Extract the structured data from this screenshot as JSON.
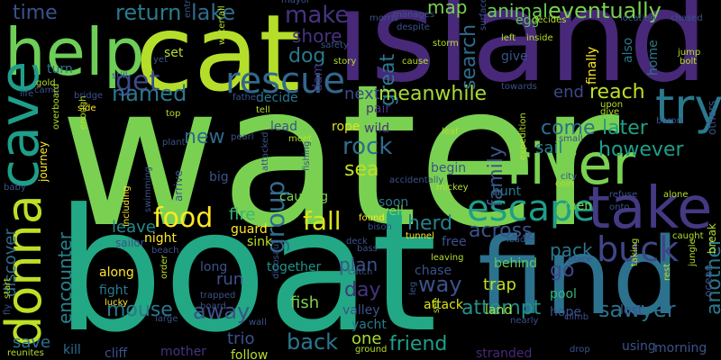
{
  "background": "#000000",
  "words": [
    {
      "text": "water",
      "color": "#7ad151",
      "rotated": false
    },
    {
      "text": "boat",
      "color": "#22a884",
      "rotated": false
    },
    {
      "text": "island",
      "color": "#482878",
      "rotated": false
    },
    {
      "text": "cat",
      "color": "#b5de2b",
      "rotated": false
    },
    {
      "text": "find",
      "color": "#2c728e",
      "rotated": false
    },
    {
      "text": "help",
      "color": "#6ece58",
      "rotated": false
    },
    {
      "text": "take",
      "color": "#443983",
      "rotated": false
    },
    {
      "text": "river",
      "color": "#7ad151",
      "rotated": false
    },
    {
      "text": "cave",
      "color": "#1f9e89",
      "rotated": true
    },
    {
      "text": "donna",
      "color": "#bddf26",
      "rotated": true
    },
    {
      "text": "try",
      "color": "#2a788e",
      "rotated": false
    },
    {
      "text": "rescue",
      "color": "#31688e",
      "rotated": false
    },
    {
      "text": "escape",
      "color": "#1f9e89",
      "rotated": false
    },
    {
      "text": "food",
      "color": "#fde725",
      "rotated": false
    },
    {
      "text": "buck",
      "color": "#404688",
      "rotated": false
    },
    {
      "text": "fall",
      "color": "#dde318",
      "rotated": false
    },
    {
      "text": "group",
      "color": "#2f6c8e",
      "rotated": true
    },
    {
      "text": "get",
      "color": "#3e4989",
      "rotated": false
    },
    {
      "text": "named",
      "color": "#2a788e",
      "rotated": false
    },
    {
      "text": "make",
      "color": "#46337f",
      "rotated": false
    },
    {
      "text": "lake",
      "color": "#2f6c8e",
      "rotated": false
    },
    {
      "text": "return",
      "color": "#287c8e",
      "rotated": false
    },
    {
      "text": "time",
      "color": "#3b528b",
      "rotated": false
    },
    {
      "text": "dog",
      "color": "#2a788e",
      "rotated": false
    },
    {
      "text": "shore",
      "color": "#46337f",
      "rotated": false
    },
    {
      "text": "great",
      "color": "#2a788e",
      "rotated": true
    },
    {
      "text": "search",
      "color": "#2f6c8e",
      "rotated": true
    },
    {
      "text": "map",
      "color": "#7ad151",
      "rotated": false
    },
    {
      "text": "animal",
      "color": "#6ece58",
      "rotated": false
    },
    {
      "text": "eventually",
      "color": "#7ad151",
      "rotated": false
    },
    {
      "text": "family",
      "color": "#3b528b",
      "rotated": true
    },
    {
      "text": "rock",
      "color": "#2f6c8e",
      "rotated": false
    },
    {
      "text": "sea",
      "color": "#c0df25",
      "rotated": false
    },
    {
      "text": "new",
      "color": "#31688e",
      "rotated": false
    },
    {
      "text": "meanwhile",
      "color": "#a8db34",
      "rotated": false
    },
    {
      "text": "reach",
      "color": "#bddf26",
      "rotated": false
    },
    {
      "text": "end",
      "color": "#3e4989",
      "rotated": false
    },
    {
      "text": "next",
      "color": "#3e4989",
      "rotated": false
    },
    {
      "text": "come",
      "color": "#2c728e",
      "rotated": false
    },
    {
      "text": "later",
      "color": "#1fa187",
      "rotated": false
    },
    {
      "text": "however",
      "color": "#1f9e89",
      "rotated": false
    },
    {
      "text": "sail",
      "color": "#287c8e",
      "rotated": false
    },
    {
      "text": "herd",
      "color": "#26828e",
      "rotated": false
    },
    {
      "text": "across",
      "color": "#3b528b",
      "rotated": false
    },
    {
      "text": "encounter",
      "color": "#26828e",
      "rotated": true
    },
    {
      "text": "discover",
      "color": "#2f6c8e",
      "rotated": true
    },
    {
      "text": "leave",
      "color": "#238a8d",
      "rotated": false
    },
    {
      "text": "fire",
      "color": "#35b779",
      "rotated": false
    },
    {
      "text": "day",
      "color": "#46337f",
      "rotated": false
    },
    {
      "text": "way",
      "color": "#3b528b",
      "rotated": false
    },
    {
      "text": "plan",
      "color": "#3b528b",
      "rotated": false
    },
    {
      "text": "pack",
      "color": "#2a788e",
      "rotated": false
    },
    {
      "text": "go",
      "color": "#3e4989",
      "rotated": false
    },
    {
      "text": "attempt",
      "color": "#20928c",
      "rotated": false
    },
    {
      "text": "sawyer",
      "color": "#2c728e",
      "rotated": false
    },
    {
      "text": "friend",
      "color": "#1f9e89",
      "rotated": false
    },
    {
      "text": "back",
      "color": "#2a788e",
      "rotated": false
    },
    {
      "text": "mouse",
      "color": "#2a788e",
      "rotated": false
    },
    {
      "text": "away",
      "color": "#3b528b",
      "rotated": false
    },
    {
      "text": "trap",
      "color": "#c0df25",
      "rotated": false
    },
    {
      "text": "save",
      "color": "#2c728e",
      "rotated": false
    },
    {
      "text": "trio",
      "color": "#3b528b",
      "rotated": false
    },
    {
      "text": "one",
      "color": "#a8db34",
      "rotated": false
    },
    {
      "text": "another",
      "color": "#2a788e",
      "rotated": true
    },
    {
      "text": "run",
      "color": "#3b528b",
      "rotated": false
    },
    {
      "text": "fish",
      "color": "#7ad151",
      "rotated": false
    },
    {
      "text": "attack",
      "color": "#dde318",
      "rotated": false
    },
    {
      "text": "land",
      "color": "#a8db34",
      "rotated": false
    },
    {
      "text": "behind",
      "color": "#5ec962",
      "rotated": false
    },
    {
      "text": "yacht",
      "color": "#287c8e",
      "rotated": false
    },
    {
      "text": "valley",
      "color": "#3b528b",
      "rotated": false
    },
    {
      "text": "kill",
      "color": "#2f6c8e",
      "rotated": false
    },
    {
      "text": "cliff",
      "color": "#3b528b",
      "rotated": false
    },
    {
      "text": "mother",
      "color": "#46337f",
      "rotated": false
    },
    {
      "text": "follow",
      "color": "#b5de2b",
      "rotated": false
    },
    {
      "text": "using",
      "color": "#3b528b",
      "rotated": false
    },
    {
      "text": "morning",
      "color": "#3b528b",
      "rotated": false
    },
    {
      "text": "stranded",
      "color": "#482878",
      "rotated": false
    },
    {
      "text": "together",
      "color": "#20928c",
      "rotated": false
    },
    {
      "text": "long",
      "color": "#3b528b",
      "rotated": false
    },
    {
      "text": "along",
      "color": "#fde725",
      "rotated": false
    },
    {
      "text": "fight",
      "color": "#2a788e",
      "rotated": false
    },
    {
      "text": "night",
      "color": "#fde725",
      "rotated": false
    },
    {
      "text": "guard",
      "color": "#fde725",
      "rotated": false
    },
    {
      "text": "sink",
      "color": "#bddf26",
      "rotated": false
    },
    {
      "text": "begin",
      "color": "#3b528b",
      "rotated": false
    },
    {
      "text": "rope",
      "color": "#dde318",
      "rotated": false
    },
    {
      "text": "wild",
      "color": "#46337f",
      "rotated": false
    },
    {
      "text": "pair",
      "color": "#46337f",
      "rotated": false
    },
    {
      "text": "big",
      "color": "#3b528b",
      "rotated": false
    },
    {
      "text": "turn",
      "color": "#2a788e",
      "rotated": false
    },
    {
      "text": "decide",
      "color": "#2a788e",
      "rotated": false
    },
    {
      "text": "lead",
      "color": "#3b528b",
      "rotated": false
    },
    {
      "text": "set",
      "color": "#b5de2b",
      "rotated": false
    },
    {
      "text": "give",
      "color": "#3b528b",
      "rotated": false
    },
    {
      "text": "egg",
      "color": "#5ec962",
      "rotated": false
    },
    {
      "text": "soon",
      "color": "#2a788e",
      "rotated": false
    },
    {
      "text": "well",
      "color": "#7ad151",
      "rotated": false
    },
    {
      "text": "free",
      "color": "#3b528b",
      "rotated": false
    },
    {
      "text": "hunt",
      "color": "#2a788e",
      "rotated": false
    },
    {
      "text": "men",
      "color": "#7ad151",
      "rotated": false
    },
    {
      "text": "chase",
      "color": "#3b528b",
      "rotated": false
    },
    {
      "text": "pool",
      "color": "#35b779",
      "rotated": false
    },
    {
      "text": "hope",
      "color": "#3b528b",
      "rotated": false
    },
    {
      "text": "lost",
      "color": "#3b528b",
      "rotated": false
    },
    {
      "text": "home",
      "color": "#2a788e",
      "rotated": true
    },
    {
      "text": "also",
      "color": "#2a788e",
      "rotated": true
    },
    {
      "text": "finally",
      "color": "#fde725",
      "rotated": true
    },
    {
      "text": "causing",
      "color": "#7ad151",
      "rotated": false
    },
    {
      "text": "dam",
      "color": "#46337f",
      "rotated": true
    },
    {
      "text": "still",
      "color": "#3b528b",
      "rotated": false
    },
    {
      "text": "life",
      "color": "#3b528b",
      "rotated": false
    },
    {
      "text": "side",
      "color": "#fde725",
      "rotated": false
    },
    {
      "text": "bridge",
      "color": "#3b528b",
      "rotated": false
    },
    {
      "text": "journey",
      "color": "#fde725",
      "rotated": true
    },
    {
      "text": "lucky",
      "color": "#fde725",
      "rotated": false
    },
    {
      "text": "arrive",
      "color": "#3b528b",
      "rotated": true
    },
    {
      "text": "including",
      "color": "#fde725",
      "rotated": true
    },
    {
      "text": "swimming",
      "color": "#3b528b",
      "rotated": true
    },
    {
      "text": "sailor",
      "color": "#3b528b",
      "rotated": false
    },
    {
      "text": "beach",
      "color": "#3b528b",
      "rotated": false
    },
    {
      "text": "trapped",
      "color": "#3b528b",
      "rotated": false
    },
    {
      "text": "board",
      "color": "#3b528b",
      "rotated": false
    },
    {
      "text": "large",
      "color": "#3b528b",
      "rotated": false
    },
    {
      "text": "wall",
      "color": "#3b528b",
      "rotated": false
    },
    {
      "text": "ground",
      "color": "#b5de2b",
      "rotated": false
    },
    {
      "text": "nearly",
      "color": "#3b528b",
      "rotated": false
    },
    {
      "text": "climb",
      "color": "#3b528b",
      "rotated": false
    },
    {
      "text": "place",
      "color": "#3b528b",
      "rotated": false
    },
    {
      "text": "leader",
      "color": "#3b528b",
      "rotated": false
    },
    {
      "text": "bass",
      "color": "#3b528b",
      "rotated": false
    },
    {
      "text": "leaving",
      "color": "#b5de2b",
      "rotated": false
    },
    {
      "text": "catch",
      "color": "#3b528b",
      "rotated": false
    },
    {
      "text": "found",
      "color": "#fde725",
      "rotated": false
    },
    {
      "text": "bison",
      "color": "#3b528b",
      "rotated": false
    },
    {
      "text": "tunnel",
      "color": "#fde725",
      "rotated": false
    },
    {
      "text": "deck",
      "color": "#3b528b",
      "rotated": false
    },
    {
      "text": "leaf",
      "color": "#b5de2b",
      "rotated": false
    },
    {
      "text": "meet",
      "color": "#b5de2b",
      "rotated": false
    },
    {
      "text": "pearl",
      "color": "#3b528b",
      "rotated": false
    },
    {
      "text": "plant",
      "color": "#3b528b",
      "rotated": false
    },
    {
      "text": "tell",
      "color": "#b5de2b",
      "rotated": false
    },
    {
      "text": "father",
      "color": "#3b528b",
      "rotated": false
    },
    {
      "text": "top",
      "color": "#b5de2b",
      "rotated": false
    },
    {
      "text": "dive",
      "color": "#b5de2b",
      "rotated": false
    },
    {
      "text": "upon",
      "color": "#b5de2b",
      "rotated": false
    },
    {
      "text": "small",
      "color": "#3b528b",
      "rotated": false
    },
    {
      "text": "city",
      "color": "#3b528b",
      "rotated": false
    },
    {
      "text": "coin",
      "color": "#b5de2b",
      "rotated": false
    },
    {
      "text": "onto",
      "color": "#3b528b",
      "rotated": false
    },
    {
      "text": "refuse",
      "color": "#3b528b",
      "rotated": false
    },
    {
      "text": "alone",
      "color": "#b5de2b",
      "rotated": false
    },
    {
      "text": "caught",
      "color": "#b5de2b",
      "rotated": false
    },
    {
      "text": "break",
      "color": "#b5de2b",
      "rotated": true
    },
    {
      "text": "jungle",
      "color": "#b5de2b",
      "rotated": true
    },
    {
      "text": "ocean",
      "color": "#3b528b",
      "rotated": true
    },
    {
      "text": "rest",
      "color": "#b5de2b",
      "rotated": true
    },
    {
      "text": "taking",
      "color": "#b5de2b",
      "rotated": true
    },
    {
      "text": "others",
      "color": "#3b528b",
      "rotated": true
    },
    {
      "text": "baron",
      "color": "#3b528b",
      "rotated": false
    },
    {
      "text": "towards",
      "color": "#3b528b",
      "rotated": false
    },
    {
      "text": "left",
      "color": "#b5de2b",
      "rotated": false
    },
    {
      "text": "inside",
      "color": "#b5de2b",
      "rotated": false
    },
    {
      "text": "storm",
      "color": "#b5de2b",
      "rotated": false
    },
    {
      "text": "cause",
      "color": "#b5de2b",
      "rotated": false
    },
    {
      "text": "story",
      "color": "#b5de2b",
      "rotated": false
    },
    {
      "text": "safety",
      "color": "#3b528b",
      "rotated": false
    },
    {
      "text": "morris",
      "color": "#3b528b",
      "rotated": false
    },
    {
      "text": "manages",
      "color": "#3b528b",
      "rotated": false
    },
    {
      "text": "despite",
      "color": "#3b528b",
      "rotated": false
    },
    {
      "text": "surface",
      "color": "#3b528b",
      "rotated": true
    },
    {
      "text": "location",
      "color": "#3b528b",
      "rotated": false
    },
    {
      "text": "chased",
      "color": "#3b528b",
      "rotated": false
    },
    {
      "text": "jump",
      "color": "#b5de2b",
      "rotated": false
    },
    {
      "text": "bolt",
      "color": "#b5de2b",
      "rotated": false
    },
    {
      "text": "mayor",
      "color": "#3b528b",
      "rotated": false
    },
    {
      "text": "decides",
      "color": "#b5de2b",
      "rotated": false
    },
    {
      "text": "entrance",
      "color": "#3b528b",
      "rotated": true
    },
    {
      "text": "waterfall",
      "color": "#b5de2b",
      "rotated": true
    },
    {
      "text": "gold",
      "color": "#b5de2b",
      "rotated": false
    },
    {
      "text": "camp",
      "color": "#3b528b",
      "rotated": false
    },
    {
      "text": "yet",
      "color": "#3b528b",
      "rotated": false
    },
    {
      "text": "enough",
      "color": "#b5de2b",
      "rotated": true
    },
    {
      "text": "overboard",
      "color": "#b5de2b",
      "rotated": true
    },
    {
      "text": "baby",
      "color": "#3b528b",
      "rotated": false
    },
    {
      "text": "start",
      "color": "#b5de2b",
      "rotated": true
    },
    {
      "text": "fly",
      "color": "#3b528b",
      "rotated": true
    },
    {
      "text": "reunites",
      "color": "#b5de2b",
      "rotated": false
    },
    {
      "text": "attacked",
      "color": "#3b528b",
      "rotated": true
    },
    {
      "text": "fishing",
      "color": "#3b528b",
      "rotated": true
    },
    {
      "text": "accidentally",
      "color": "#3b528b",
      "rotated": false
    },
    {
      "text": "mickey",
      "color": "#b5de2b",
      "rotated": false
    },
    {
      "text": "expedition",
      "color": "#b5de2b",
      "rotated": true
    },
    {
      "text": "order",
      "color": "#b5de2b",
      "rotated": true
    },
    {
      "text": "dinosaur",
      "color": "#3b528b",
      "rotated": true
    },
    {
      "text": "see",
      "color": "#b5de2b",
      "rotated": true
    },
    {
      "text": "leg",
      "color": "#3b528b",
      "rotated": true
    },
    {
      "text": "drop",
      "color": "#3b528b",
      "rotated": false
    }
  ]
}
